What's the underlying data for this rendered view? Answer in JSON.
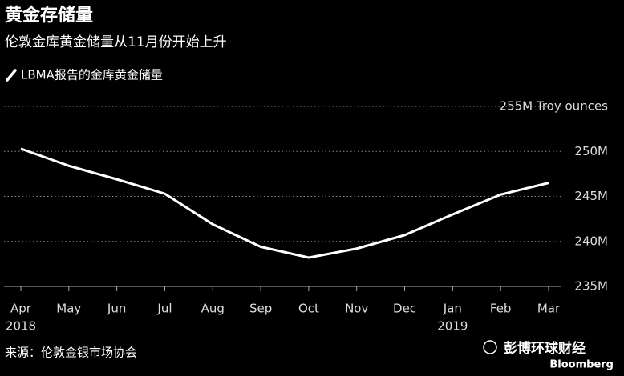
{
  "chart_data": {
    "type": "line",
    "title": "黄金存储量",
    "subtitle": "伦敦金库黄金储量从11月份开始上升",
    "categories": [
      "Apr",
      "May",
      "Jun",
      "Jul",
      "Aug",
      "Sep",
      "Oct",
      "Nov",
      "Dec",
      "Jan",
      "Feb",
      "Mar"
    ],
    "category_years": [
      "2018",
      null,
      null,
      null,
      null,
      null,
      null,
      null,
      null,
      "2019",
      null,
      null
    ],
    "series": [
      {
        "name": "LBMA报告的金库黄金储量",
        "color": "#ffffff",
        "values": [
          250.3,
          248.4,
          246.9,
          245.3,
          241.9,
          239.4,
          238.2,
          239.2,
          240.7,
          243.0,
          245.2,
          246.5
        ]
      }
    ],
    "ylim": [
      235,
      255
    ],
    "yticks": [
      {
        "value": 235,
        "label": "235M"
      },
      {
        "value": 240,
        "label": "240M"
      },
      {
        "value": 245,
        "label": "245M"
      },
      {
        "value": 250,
        "label": "250M"
      },
      {
        "value": 255,
        "label": "255M Troy ounces"
      }
    ],
    "grid": true,
    "source": "来源：伦敦金银市场协会",
    "brand": "彭博环球财经",
    "brand_sub": "Bloomberg"
  }
}
